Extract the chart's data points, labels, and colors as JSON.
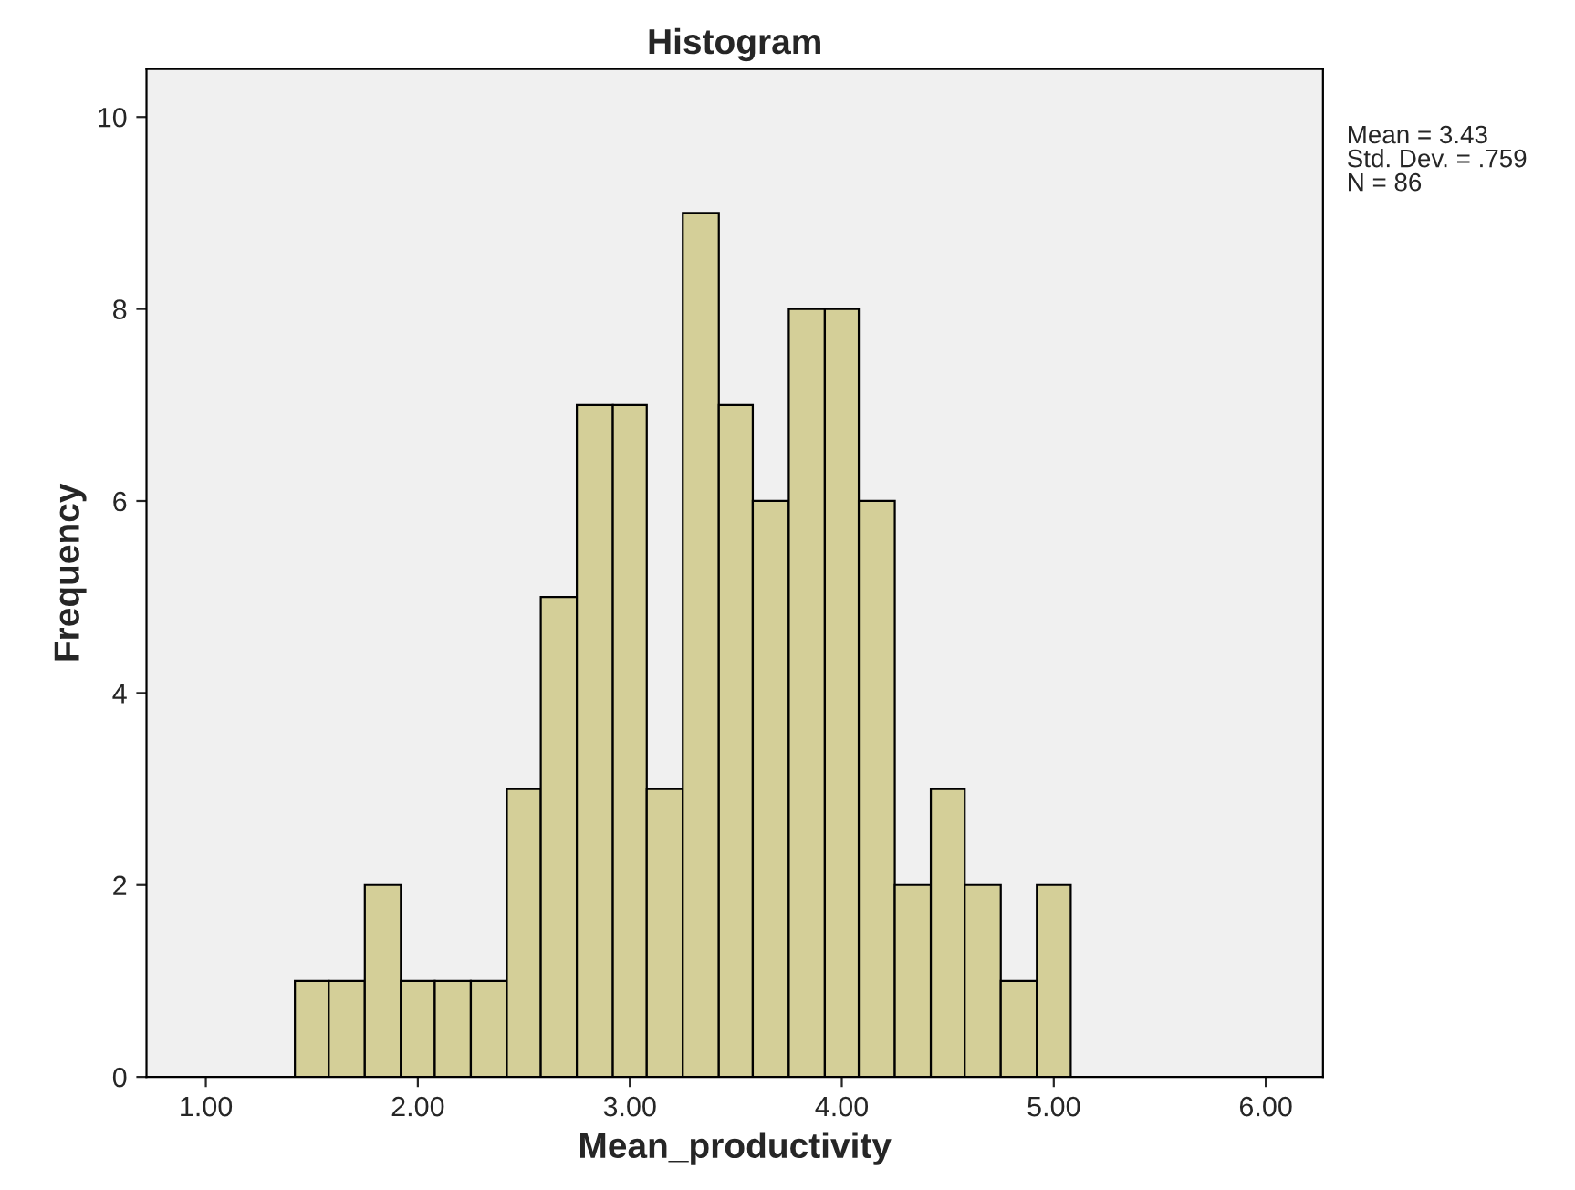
{
  "chart_data": {
    "type": "histogram",
    "title": "Histogram",
    "xlabel": "Mean_productivity",
    "ylabel": "Frequency",
    "bins": [
      1.42,
      1.58,
      1.75,
      1.92,
      2.08,
      2.25,
      2.42,
      2.58,
      2.75,
      2.92,
      3.08,
      3.25,
      3.42,
      3.58,
      3.75,
      3.92,
      4.08,
      4.25,
      4.42,
      4.58,
      4.75,
      4.92,
      5.08
    ],
    "values": [
      1,
      1,
      2,
      1,
      1,
      1,
      3,
      5,
      7,
      7,
      3,
      9,
      7,
      6,
      8,
      8,
      6,
      2,
      3,
      2,
      1,
      2
    ],
    "color": "#d4cf98",
    "xlim": [
      0.72,
      6.27
    ],
    "xticks": [
      {
        "value": 1,
        "label": "1.00"
      },
      {
        "value": 2,
        "label": "2.00"
      },
      {
        "value": 3,
        "label": "3.00"
      },
      {
        "value": 4,
        "label": "4.00"
      },
      {
        "value": 5,
        "label": "5.00"
      },
      {
        "value": 6,
        "label": "6.00"
      }
    ],
    "ylim": [
      0,
      10.5
    ],
    "yticks": [
      0,
      2,
      4,
      6,
      8,
      10
    ],
    "annotations": [
      "Mean = 3.43",
      "Std. Dev. = .759",
      "N = 86"
    ],
    "grid": false,
    "legend": false
  }
}
